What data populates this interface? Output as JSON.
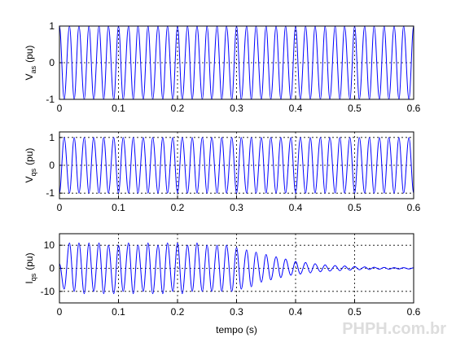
{
  "watermark": "PHPH.com.br",
  "chart_data": [
    {
      "type": "line",
      "ylabel": "V",
      "ylabel_sub": "as",
      "ylabel_unit": "(pu)",
      "xlim": [
        0,
        0.6
      ],
      "xticks": [
        0,
        0.1,
        0.2,
        0.3,
        0.4,
        0.5,
        0.6
      ],
      "ylim": [
        -1,
        1
      ],
      "yticks": [
        -1,
        0,
        1
      ],
      "grid": true,
      "x": [
        0,
        0.008,
        0.017,
        0.025,
        0.033,
        0.042,
        0.05,
        0.058,
        0.067,
        0.075,
        0.083,
        0.092,
        0.1,
        0.108,
        0.117,
        0.125,
        0.133,
        0.142,
        0.15,
        0.158,
        0.167,
        0.175,
        0.183,
        0.192,
        0.2,
        0.208,
        0.217,
        0.225,
        0.233,
        0.242,
        0.25,
        0.258,
        0.267,
        0.275,
        0.283,
        0.292,
        0.3,
        0.308,
        0.317,
        0.325,
        0.333,
        0.342,
        0.35,
        0.358,
        0.367,
        0.375,
        0.383,
        0.392,
        0.4,
        0.408,
        0.417,
        0.425,
        0.433,
        0.442,
        0.45,
        0.458,
        0.467,
        0.475,
        0.483,
        0.492,
        0.5,
        0.508,
        0.517,
        0.525,
        0.533,
        0.542,
        0.55,
        0.558,
        0.567,
        0.575,
        0.583,
        0.592,
        0.6
      ],
      "series": [
        {
          "color": "#0000ff",
          "values": [
            1,
            -1,
            1,
            -1,
            1,
            -1,
            1,
            -1,
            1,
            -1,
            1,
            -1,
            1,
            -1,
            1,
            -1,
            1,
            -1,
            1,
            -1,
            1,
            -1,
            1,
            -1,
            1,
            -1,
            1,
            -1,
            1,
            -1,
            1,
            -1,
            1,
            -1,
            1,
            -1,
            1,
            -1,
            1,
            -1,
            1,
            -1,
            1,
            -1,
            1,
            -1,
            1,
            -1,
            1,
            -1,
            1,
            -1,
            1,
            -1,
            1,
            -1,
            1,
            -1,
            1,
            -1,
            1,
            -1,
            1,
            -1,
            1,
            -1,
            1,
            -1,
            1,
            -1,
            1,
            -1,
            1
          ]
        }
      ]
    },
    {
      "type": "line",
      "ylabel": "V",
      "ylabel_sub": "qs",
      "ylabel_unit": "(pu)",
      "xlim": [
        0,
        0.6
      ],
      "xticks": [
        0,
        0.1,
        0.2,
        0.3,
        0.4,
        0.5,
        0.6
      ],
      "ylim": [
        -1.2,
        1.2
      ],
      "yticks": [
        -1,
        0,
        1
      ],
      "grid": true,
      "x": [
        0,
        0.008,
        0.017,
        0.025,
        0.033,
        0.042,
        0.05,
        0.058,
        0.067,
        0.075,
        0.083,
        0.092,
        0.1,
        0.108,
        0.117,
        0.125,
        0.133,
        0.142,
        0.15,
        0.158,
        0.167,
        0.175,
        0.183,
        0.192,
        0.2,
        0.208,
        0.217,
        0.225,
        0.233,
        0.242,
        0.25,
        0.258,
        0.267,
        0.275,
        0.283,
        0.292,
        0.3,
        0.308,
        0.317,
        0.325,
        0.333,
        0.342,
        0.35,
        0.358,
        0.367,
        0.375,
        0.383,
        0.392,
        0.4,
        0.408,
        0.417,
        0.425,
        0.433,
        0.442,
        0.45,
        0.458,
        0.467,
        0.475,
        0.483,
        0.492,
        0.5,
        0.508,
        0.517,
        0.525,
        0.533,
        0.542,
        0.55,
        0.558,
        0.567,
        0.575,
        0.583,
        0.592,
        0.6
      ],
      "series": [
        {
          "color": "#0000ff",
          "values": [
            -1,
            1,
            -1,
            1,
            -1,
            1,
            -1,
            1,
            -1,
            1,
            -1,
            1,
            -1,
            1,
            -1,
            1,
            -1,
            1,
            -1,
            1,
            -1,
            1,
            -1,
            1,
            -1,
            1,
            -1,
            1,
            -1,
            1,
            -1,
            1,
            -1,
            1,
            -1,
            1,
            -1,
            1,
            -1,
            1,
            -1,
            1,
            -1,
            1,
            -1,
            1,
            -1,
            1,
            -1,
            1,
            -1,
            1,
            -1,
            1,
            -1,
            1,
            -1,
            1,
            -1,
            1,
            -1,
            1,
            -1,
            1,
            -1,
            1,
            -1,
            1,
            -1,
            1,
            -1,
            1,
            -1
          ]
        }
      ]
    },
    {
      "type": "line",
      "ylabel": "I",
      "ylabel_sub": "qs",
      "ylabel_unit": "(pu)",
      "xlabel": "tempo (s)",
      "xlim": [
        0,
        0.6
      ],
      "xticks": [
        0,
        0.1,
        0.2,
        0.3,
        0.4,
        0.5,
        0.6
      ],
      "ylim": [
        -15,
        15
      ],
      "yticks": [
        -10,
        0,
        10
      ],
      "grid": true,
      "x": [
        0,
        0.008,
        0.017,
        0.025,
        0.033,
        0.042,
        0.05,
        0.058,
        0.067,
        0.075,
        0.083,
        0.092,
        0.1,
        0.108,
        0.117,
        0.125,
        0.133,
        0.142,
        0.15,
        0.158,
        0.167,
        0.175,
        0.183,
        0.192,
        0.2,
        0.208,
        0.217,
        0.225,
        0.233,
        0.242,
        0.25,
        0.258,
        0.267,
        0.275,
        0.283,
        0.292,
        0.3,
        0.308,
        0.317,
        0.325,
        0.333,
        0.342,
        0.35,
        0.358,
        0.367,
        0.375,
        0.383,
        0.392,
        0.4,
        0.408,
        0.417,
        0.425,
        0.433,
        0.442,
        0.45,
        0.458,
        0.467,
        0.475,
        0.483,
        0.492,
        0.5,
        0.508,
        0.517,
        0.525,
        0.533,
        0.542,
        0.55,
        0.558,
        0.567,
        0.575,
        0.583,
        0.592,
        0.6
      ],
      "series": [
        {
          "color": "#0000ff",
          "values": [
            2,
            -9,
            11,
            -10,
            11,
            -11,
            11,
            -10,
            11,
            -11,
            10,
            -11,
            10,
            -10,
            11,
            -11,
            10,
            -10,
            11,
            -11,
            10,
            -11,
            11,
            -10,
            11,
            -11,
            10,
            -10,
            11,
            -10,
            10,
            -10,
            10,
            -10,
            10,
            -10,
            9,
            -9,
            8,
            -8,
            7,
            -6,
            6,
            -5,
            5,
            -4,
            4,
            -3,
            3,
            -2.5,
            2.5,
            -2,
            2,
            -1.5,
            1.5,
            -1.2,
            1.2,
            -1,
            1,
            -0.8,
            0.8,
            -0.6,
            0.6,
            -0.5,
            0.5,
            -0.4,
            0.4,
            -0.4,
            0.3,
            -0.3,
            0.3,
            -0.3,
            0.2
          ]
        }
      ]
    }
  ]
}
